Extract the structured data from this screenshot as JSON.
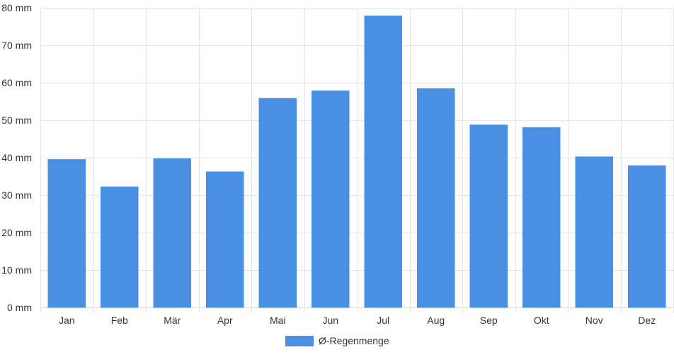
{
  "chart_data": {
    "type": "bar",
    "categories": [
      "Jan",
      "Feb",
      "Mär",
      "Apr",
      "Mai",
      "Jun",
      "Jul",
      "Aug",
      "Sep",
      "Okt",
      "Nov",
      "Dez"
    ],
    "series": [
      {
        "name": "Ø-Regenmenge",
        "values": [
          39.6,
          32.3,
          39.8,
          36.3,
          55.9,
          57.9,
          77.9,
          58.5,
          48.8,
          48.1,
          40.3,
          37.9
        ]
      }
    ],
    "title": "",
    "xlabel": "",
    "ylabel": "",
    "ylim": [
      0,
      80
    ],
    "yticks": [
      0,
      10,
      20,
      30,
      40,
      50,
      60,
      70,
      80
    ],
    "ytick_unit": "mm",
    "grid": true,
    "legend": "bottom-center",
    "color": "#4a90e2"
  }
}
